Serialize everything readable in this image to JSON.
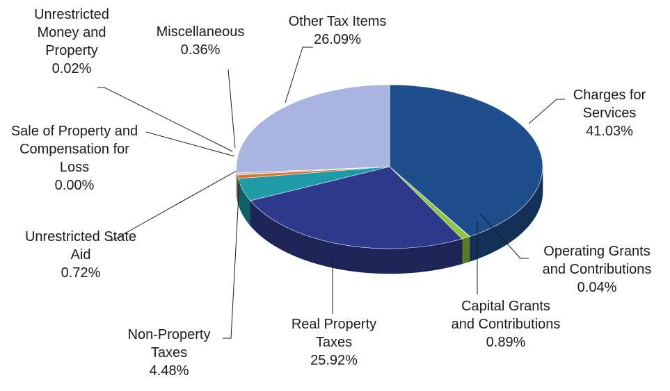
{
  "chart_data": {
    "type": "pie",
    "title": "",
    "slices": [
      {
        "name": "Charges for Services",
        "value": 41.03,
        "pct_label": "41.03%",
        "color": "#1f4e8c"
      },
      {
        "name": "Operating Grants and Contributions",
        "value": 0.04,
        "pct_label": "0.04%",
        "color": "#7bb2d9"
      },
      {
        "name": "Capital Grants and Contributions",
        "value": 0.89,
        "pct_label": "0.89%",
        "color": "#8cc63f"
      },
      {
        "name": "Real Property Taxes",
        "value": 25.92,
        "pct_label": "25.92%",
        "color": "#2e3a8c"
      },
      {
        "name": "Non-Property Taxes",
        "value": 4.48,
        "pct_label": "4.48%",
        "color": "#1f9aa6"
      },
      {
        "name": "Unrestricted State Aid",
        "value": 0.72,
        "pct_label": "0.72%",
        "color": "#e0702a"
      },
      {
        "name": "Sale of Property and Compensation for Loss",
        "value": 0.0,
        "pct_label": "0.00%",
        "color": "#b0c4de"
      },
      {
        "name": "Unrestricted Money and Property",
        "value": 0.02,
        "pct_label": "0.02%",
        "color": "#6a8fc0"
      },
      {
        "name": "Miscellaneous",
        "value": 0.36,
        "pct_label": "0.36%",
        "color": "#d8b4a0"
      },
      {
        "name": "Other Tax Items",
        "value": 26.09,
        "pct_label": "26.09%",
        "color": "#a9b4e0"
      }
    ],
    "labels": [
      {
        "lines": [
          "Charges for",
          "Services"
        ],
        "pct": "41.03%"
      },
      {
        "lines": [
          "Operating Grants",
          "and Contributions"
        ],
        "pct": "0.04%"
      },
      {
        "lines": [
          "Capital Grants",
          "and Contributions"
        ],
        "pct": "0.89%"
      },
      {
        "lines": [
          "Real Property",
          "Taxes"
        ],
        "pct": "25.92%"
      },
      {
        "lines": [
          "Non-Property",
          "Taxes"
        ],
        "pct": "4.48%"
      },
      {
        "lines": [
          "Unrestricted State",
          "Aid"
        ],
        "pct": "0.72%"
      },
      {
        "lines": [
          "Sale of Property and",
          "Compensation for",
          "Loss"
        ],
        "pct": "0.00%"
      },
      {
        "lines": [
          "Unrestricted",
          "Money and",
          "Property"
        ],
        "pct": "0.02%"
      },
      {
        "lines": [
          "Miscellaneous"
        ],
        "pct": "0.36%"
      },
      {
        "lines": [
          "Other Tax Items"
        ],
        "pct": "26.09%"
      }
    ],
    "legend": "none",
    "style": "3d-exploded-pie"
  }
}
